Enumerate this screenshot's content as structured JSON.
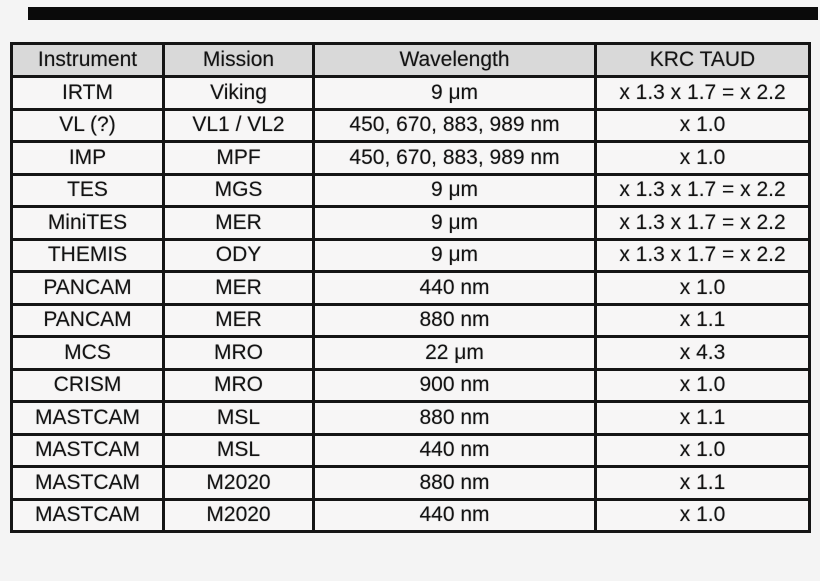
{
  "page": {
    "background_color": "#f4f4f4",
    "top_bar_color": "#0a0a0a",
    "border_color": "#151515",
    "header_bg_color": "#d9d9d9",
    "cell_bg_color": "#f7f6f6"
  },
  "table": {
    "headers": [
      "Instrument",
      "Mission",
      "Wavelength",
      "KRC TAUD"
    ],
    "rows": [
      [
        "IRTM",
        "Viking",
        "9 μm",
        "x 1.3 x 1.7 = x 2.2"
      ],
      [
        "VL (?)",
        "VL1 / VL2",
        "450, 670, 883, 989 nm",
        "x 1.0"
      ],
      [
        "IMP",
        "MPF",
        "450, 670, 883, 989 nm",
        "x 1.0"
      ],
      [
        "TES",
        "MGS",
        "9 μm",
        "x 1.3 x 1.7 = x 2.2"
      ],
      [
        "MiniTES",
        "MER",
        "9 μm",
        "x 1.3 x 1.7 = x 2.2"
      ],
      [
        "THEMIS",
        "ODY",
        "9 μm",
        "x 1.3 x 1.7 = x 2.2"
      ],
      [
        "PANCAM",
        "MER",
        "440 nm",
        "x 1.0"
      ],
      [
        "PANCAM",
        "MER",
        "880 nm",
        "x 1.1"
      ],
      [
        "MCS",
        "MRO",
        "22 μm",
        "x 4.3"
      ],
      [
        "CRISM",
        "MRO",
        "900 nm",
        "x 1.0"
      ],
      [
        "MASTCAM",
        "MSL",
        "880 nm",
        "x 1.1"
      ],
      [
        "MASTCAM",
        "MSL",
        "440 nm",
        "x 1.0"
      ],
      [
        "MASTCAM",
        "M2020",
        "880 nm",
        "x 1.1"
      ],
      [
        "MASTCAM",
        "M2020",
        "440 nm",
        "x 1.0"
      ]
    ]
  },
  "chart_data": {
    "type": "table",
    "title": "",
    "columns": [
      "Instrument",
      "Mission",
      "Wavelength",
      "KRC TAUD"
    ],
    "rows": [
      [
        "IRTM",
        "Viking",
        "9 μm",
        "x 1.3 x 1.7 = x 2.2"
      ],
      [
        "VL (?)",
        "VL1 / VL2",
        "450, 670, 883, 989 nm",
        "x 1.0"
      ],
      [
        "IMP",
        "MPF",
        "450, 670, 883, 989 nm",
        "x 1.0"
      ],
      [
        "TES",
        "MGS",
        "9 μm",
        "x 1.3 x 1.7 = x 2.2"
      ],
      [
        "MiniTES",
        "MER",
        "9 μm",
        "x 1.3 x 1.7 = x 2.2"
      ],
      [
        "THEMIS",
        "ODY",
        "9 μm",
        "x 1.3 x 1.7 = x 2.2"
      ],
      [
        "PANCAM",
        "MER",
        "440 nm",
        "x 1.0"
      ],
      [
        "PANCAM",
        "MER",
        "880 nm",
        "x 1.1"
      ],
      [
        "MCS",
        "MRO",
        "22 μm",
        "x 4.3"
      ],
      [
        "CRISM",
        "MRO",
        "900 nm",
        "x 1.0"
      ],
      [
        "MASTCAM",
        "MSL",
        "880 nm",
        "x 1.1"
      ],
      [
        "MASTCAM",
        "MSL",
        "440 nm",
        "x 1.0"
      ],
      [
        "MASTCAM",
        "M2020",
        "880 nm",
        "x 1.1"
      ],
      [
        "MASTCAM",
        "M2020",
        "440 nm",
        "x 1.0"
      ]
    ]
  }
}
